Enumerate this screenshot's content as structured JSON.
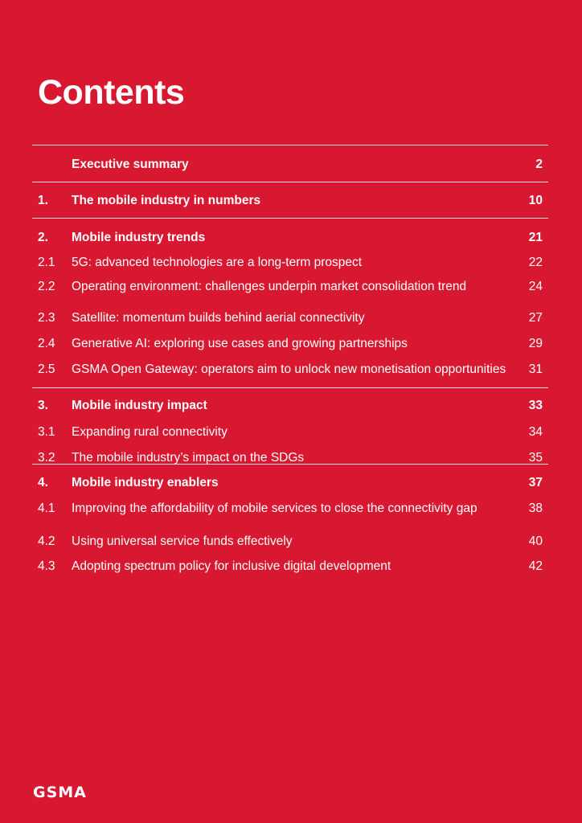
{
  "page": {
    "title": "Contents",
    "logo": "GSMA"
  },
  "toc": [
    {
      "num": "",
      "label": "Executive summary",
      "page": "2",
      "major": true
    },
    {
      "num": "1.",
      "label": "The mobile industry in numbers",
      "page": "10",
      "major": true
    },
    {
      "num": "2.",
      "label": "Mobile industry trends",
      "page": "21",
      "major": true
    },
    {
      "num": "2.1",
      "label": "5G: advanced technologies are a long-term prospect",
      "page": "22",
      "major": false
    },
    {
      "num": "2.2",
      "label": "Operating environment: challenges underpin market consolidation trend",
      "page": "24",
      "major": false
    },
    {
      "num": "2.3",
      "label": "Satellite: momentum builds behind aerial connectivity",
      "page": "27",
      "major": false
    },
    {
      "num": "2.4",
      "label": "Generative AI: exploring use cases and growing partnerships",
      "page": "29",
      "major": false
    },
    {
      "num": "2.5",
      "label": "GSMA Open Gateway: operators aim to unlock new monetisation opportunities",
      "page": "31",
      "major": false
    },
    {
      "num": "3.",
      "label": "Mobile industry impact",
      "page": "33",
      "major": true
    },
    {
      "num": "3.1",
      "label": "Expanding rural connectivity",
      "page": "34",
      "major": false
    },
    {
      "num": "3.2",
      "label": "The mobile industry’s impact on the SDGs",
      "page": "35",
      "major": false
    },
    {
      "num": "4.",
      "label": "Mobile industry enablers",
      "page": "37",
      "major": true
    },
    {
      "num": "4.1",
      "label": "Improving the affordability of mobile services to close the connectivity gap",
      "page": "38",
      "major": false
    },
    {
      "num": "4.2",
      "label": "Using universal service funds effectively",
      "page": "40",
      "major": false
    },
    {
      "num": "4.3",
      "label": "Adopting spectrum policy for inclusive digital development",
      "page": "42",
      "major": false
    }
  ]
}
